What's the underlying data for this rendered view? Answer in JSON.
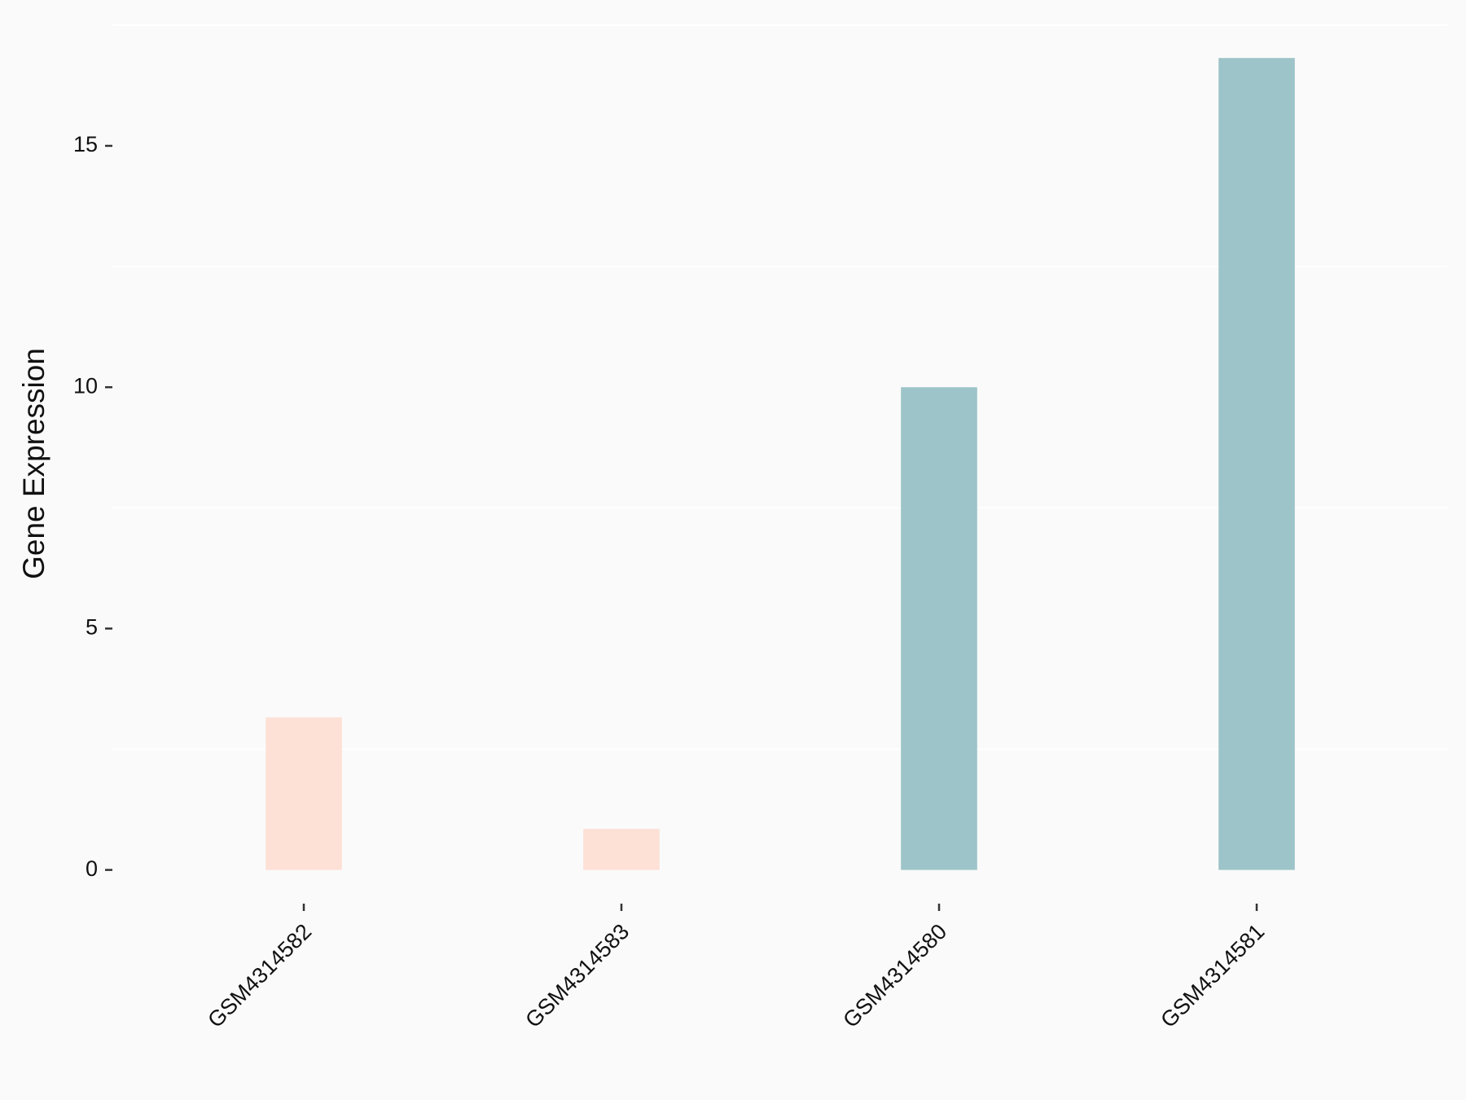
{
  "chart_data": {
    "type": "bar",
    "y_label": "Gene Expression",
    "categories": [
      "GSM4314582",
      "GSM4314583",
      "GSM4314580",
      "GSM4314581"
    ],
    "values": [
      3.16,
      0.85,
      10,
      16.82
    ],
    "colors": [
      "#fde0d6",
      "#fde0d6",
      "#9dc4c8",
      "#9dc4c8"
    ],
    "ylim": [
      -0.84,
      17.66
    ],
    "yticks": [
      0,
      5,
      10,
      15
    ],
    "y_minor_grid": [
      2.5,
      7.5,
      12.5,
      17.5
    ]
  }
}
